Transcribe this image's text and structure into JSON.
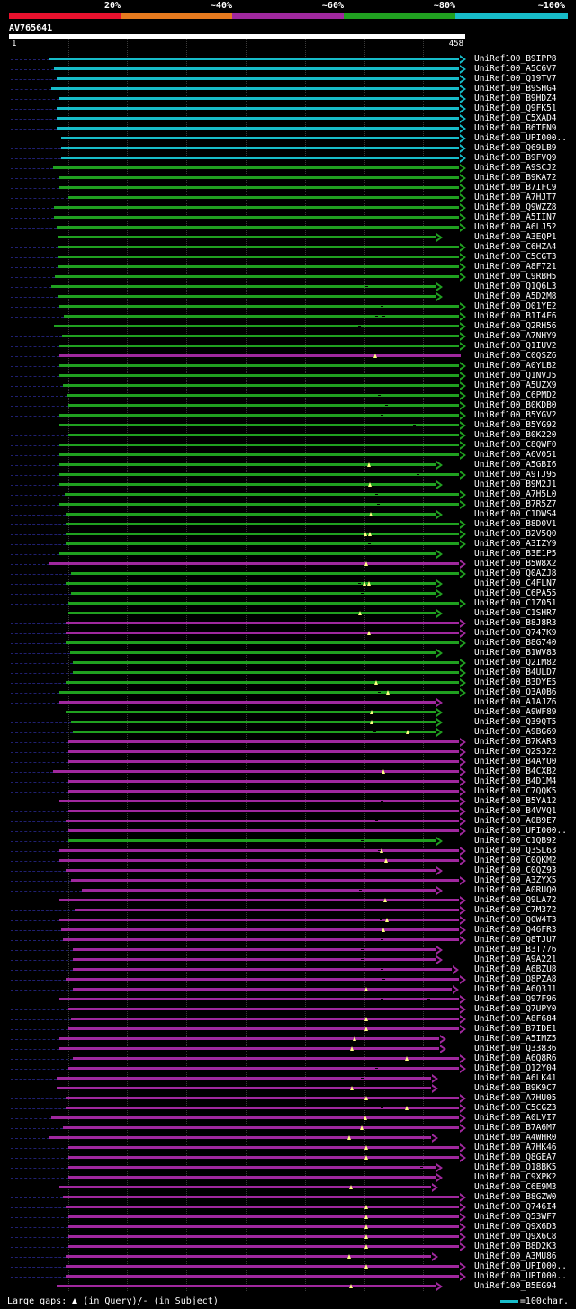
{
  "legend": [
    {
      "label": "20%",
      "color": "#e8112d"
    },
    {
      "label": "~40%",
      "color": "#e67a1e"
    },
    {
      "label": "~60%",
      "color": "#a0289e"
    },
    {
      "label": "~80%",
      "color": "#20a020"
    },
    {
      "label": "~100%",
      "color": "#17bcc9"
    }
  ],
  "query": {
    "id": "AV765641",
    "start": "1",
    "end": "458",
    "length": 458
  },
  "scale_ticks": [
    60,
    120,
    180,
    240,
    300,
    360,
    420
  ],
  "colors": {
    "c": "#17bcc9",
    "g": "#20a020",
    "p": "#a0289e",
    "marker": "#ffff80",
    "unaligned": "#202070"
  },
  "footer": {
    "large_gaps": "Large gaps:",
    "in_query": "(in Query)/",
    "dash": "-",
    "in_subject": "(in Subject)",
    "scale_label": "=100char."
  },
  "hits": [
    {
      "label": "UniRef100_B9IPP8",
      "c": "c",
      "s": 41,
      "e": 458,
      "a": 1,
      "m": [],
      "g": []
    },
    {
      "label": "UniRef100_A5C6V7",
      "c": "c",
      "s": 46,
      "e": 458,
      "a": 1,
      "m": [],
      "g": []
    },
    {
      "label": "UniRef100_Q19TV7",
      "c": "c",
      "s": 48,
      "e": 458,
      "a": 1,
      "m": [],
      "g": []
    },
    {
      "label": "UniRef100_B9SHG4",
      "c": "c",
      "s": 43,
      "e": 458,
      "a": 1,
      "m": [],
      "g": []
    },
    {
      "label": "UniRef100_B9HDZ4",
      "c": "c",
      "s": 51,
      "e": 458,
      "a": 1,
      "m": [],
      "g": []
    },
    {
      "label": "UniRef100_Q9FK51",
      "c": "c",
      "s": 48,
      "e": 458,
      "a": 1,
      "m": [],
      "g": []
    },
    {
      "label": "UniRef100_C5XAD4",
      "c": "c",
      "s": 48,
      "e": 458,
      "a": 1,
      "m": [],
      "g": []
    },
    {
      "label": "UniRef100_B6TFN9",
      "c": "c",
      "s": 48,
      "e": 458,
      "a": 1,
      "m": [],
      "g": []
    },
    {
      "label": "UniRef100_UPI000..",
      "c": "c",
      "s": 53,
      "e": 458,
      "a": 1,
      "m": [],
      "g": []
    },
    {
      "label": "UniRef100_Q69LB9",
      "c": "c",
      "s": 53,
      "e": 458,
      "a": 1,
      "m": [],
      "g": []
    },
    {
      "label": "UniRef100_B9FVQ9",
      "c": "c",
      "s": 53,
      "e": 458,
      "a": 1,
      "m": [],
      "g": []
    },
    {
      "label": "UniRef100_A9SCJ2",
      "c": "g",
      "s": 45,
      "e": 458,
      "a": 1,
      "m": [],
      "g": []
    },
    {
      "label": "UniRef100_B9KA72",
      "c": "g",
      "s": 51,
      "e": 458,
      "a": 1,
      "m": [],
      "g": []
    },
    {
      "label": "UniRef100_B7IFC9",
      "c": "g",
      "s": 51,
      "e": 458,
      "a": 1,
      "m": [],
      "g": []
    },
    {
      "label": "UniRef100_A7HJT7",
      "c": "g",
      "s": 60,
      "e": 458,
      "a": 1,
      "m": [],
      "g": []
    },
    {
      "label": "UniRef100_Q9WZZ8",
      "c": "g",
      "s": 46,
      "e": 458,
      "a": 1,
      "m": [],
      "g": []
    },
    {
      "label": "UniRef100_A5IIN7",
      "c": "g",
      "s": 46,
      "e": 458,
      "a": 1,
      "m": [],
      "g": []
    },
    {
      "label": "UniRef100_A6LJ52",
      "c": "g",
      "s": 48,
      "e": 458,
      "a": 1,
      "m": [],
      "g": []
    },
    {
      "label": "UniRef100_A3EQP1",
      "c": "g",
      "s": 49,
      "e": 434,
      "a": 1,
      "m": [],
      "g": []
    },
    {
      "label": "UniRef100_C6HZA4",
      "c": "g",
      "s": 50,
      "e": 458,
      "a": 1,
      "m": [],
      "g": [
        376
      ]
    },
    {
      "label": "UniRef100_C5CGT3",
      "c": "g",
      "s": 49,
      "e": 458,
      "a": 1,
      "m": [],
      "g": []
    },
    {
      "label": "UniRef100_A8F721",
      "c": "g",
      "s": 50,
      "e": 458,
      "a": 1,
      "m": [],
      "g": []
    },
    {
      "label": "UniRef100_C9RBH5",
      "c": "g",
      "s": 47,
      "e": 458,
      "a": 1,
      "m": [],
      "g": []
    },
    {
      "label": "UniRef100_Q1Q6L3",
      "c": "g",
      "s": 43,
      "e": 434,
      "a": 1,
      "m": [],
      "g": [
        362
      ]
    },
    {
      "label": "UniRef100_A5D2M8",
      "c": "g",
      "s": 49,
      "e": 434,
      "a": 1,
      "m": [],
      "g": []
    },
    {
      "label": "UniRef100_Q01YE2",
      "c": "g",
      "s": 51,
      "e": 458,
      "a": 1,
      "m": [],
      "g": [
        378
      ]
    },
    {
      "label": "UniRef100_B1I4F6",
      "c": "g",
      "s": 56,
      "e": 458,
      "a": 1,
      "m": [],
      "g": [
        372,
        380
      ]
    },
    {
      "label": "UniRef100_Q2RH56",
      "c": "g",
      "s": 46,
      "e": 458,
      "a": 1,
      "m": [],
      "g": [
        355
      ]
    },
    {
      "label": "UniRef100_A7NHY9",
      "c": "g",
      "s": 54,
      "e": 458,
      "a": 1,
      "m": [],
      "g": []
    },
    {
      "label": "UniRef100_Q1IUV2",
      "c": "g",
      "s": 51,
      "e": 458,
      "a": 1,
      "m": [],
      "g": []
    },
    {
      "label": "UniRef100_C0QSZ6",
      "c": "p",
      "s": 51,
      "e": 458,
      "a": 0,
      "m": [
        371
      ],
      "g": []
    },
    {
      "label": "UniRef100_A0YLB2",
      "c": "g",
      "s": 51,
      "e": 458,
      "a": 1,
      "m": [],
      "g": []
    },
    {
      "label": "UniRef100_Q1NVJ5",
      "c": "g",
      "s": 51,
      "e": 458,
      "a": 1,
      "m": [],
      "g": []
    },
    {
      "label": "UniRef100_A5UZX9",
      "c": "g",
      "s": 55,
      "e": 458,
      "a": 1,
      "m": [],
      "g": []
    },
    {
      "label": "UniRef100_C6PMD2",
      "c": "g",
      "s": 59,
      "e": 458,
      "a": 1,
      "m": [],
      "g": [
        375
      ]
    },
    {
      "label": "UniRef100_B0KDB0",
      "c": "g",
      "s": 60,
      "e": 458,
      "a": 1,
      "m": [],
      "g": [
        382
      ]
    },
    {
      "label": "UniRef100_B5YGV2",
      "c": "g",
      "s": 51,
      "e": 458,
      "a": 1,
      "m": [],
      "g": [
        378
      ]
    },
    {
      "label": "UniRef100_B5YG92",
      "c": "g",
      "s": 51,
      "e": 458,
      "a": 1,
      "m": [],
      "g": [
        411
      ]
    },
    {
      "label": "UniRef100_B0K220",
      "c": "g",
      "s": 60,
      "e": 458,
      "a": 1,
      "m": [],
      "g": [
        380
      ]
    },
    {
      "label": "UniRef100_C8QWF0",
      "c": "g",
      "s": 51,
      "e": 458,
      "a": 1,
      "m": [],
      "g": []
    },
    {
      "label": "UniRef100_A6V051",
      "c": "g",
      "s": 51,
      "e": 458,
      "a": 1,
      "m": [],
      "g": []
    },
    {
      "label": "UniRef100_A5GBI6",
      "c": "g",
      "s": 51,
      "e": 434,
      "a": 1,
      "m": [
        365
      ],
      "g": []
    },
    {
      "label": "UniRef100_A9TJ95",
      "c": "g",
      "s": 51,
      "e": 458,
      "a": 1,
      "m": [],
      "g": [
        414
      ]
    },
    {
      "label": "UniRef100_B9M2J1",
      "c": "g",
      "s": 51,
      "e": 434,
      "a": 1,
      "m": [
        366
      ],
      "g": []
    },
    {
      "label": "UniRef100_A7H5L0",
      "c": "g",
      "s": 57,
      "e": 458,
      "a": 1,
      "m": [],
      "g": [
        372
      ]
    },
    {
      "label": "UniRef100_B7R5Z7",
      "c": "g",
      "s": 51,
      "e": 458,
      "a": 1,
      "m": [],
      "g": [
        374
      ]
    },
    {
      "label": "UniRef100_C1DWS4",
      "c": "g",
      "s": 58,
      "e": 434,
      "a": 1,
      "m": [
        367
      ],
      "g": []
    },
    {
      "label": "UniRef100_B8D0V1",
      "c": "g",
      "s": 58,
      "e": 458,
      "a": 1,
      "m": [],
      "g": [
        366
      ]
    },
    {
      "label": "UniRef100_B2V5Q0",
      "c": "g",
      "s": 58,
      "e": 458,
      "a": 1,
      "m": [
        361,
        366
      ],
      "g": []
    },
    {
      "label": "UniRef100_A3IZY9",
      "c": "g",
      "s": 58,
      "e": 458,
      "a": 1,
      "m": [],
      "g": [
        365
      ]
    },
    {
      "label": "UniRef100_B3E1P5",
      "c": "g",
      "s": 51,
      "e": 434,
      "a": 1,
      "m": [],
      "g": []
    },
    {
      "label": "UniRef100_B5W8X2",
      "c": "p",
      "s": 41,
      "e": 458,
      "a": 1,
      "m": [
        362
      ],
      "g": []
    },
    {
      "label": "UniRef100_Q0AZJ8",
      "c": "g",
      "s": 63,
      "e": 458,
      "a": 1,
      "m": [],
      "g": []
    },
    {
      "label": "UniRef100_C4FLN7",
      "c": "g",
      "s": 58,
      "e": 434,
      "a": 1,
      "m": [
        360,
        365
      ],
      "g": [
        355
      ]
    },
    {
      "label": "UniRef100_C6PA55",
      "c": "g",
      "s": 63,
      "e": 434,
      "a": 1,
      "m": [],
      "g": [
        358
      ]
    },
    {
      "label": "UniRef100_C1Z051",
      "c": "g",
      "s": 60,
      "e": 458,
      "a": 1,
      "m": [],
      "g": []
    },
    {
      "label": "UniRef100_C1SHR7",
      "c": "g",
      "s": 60,
      "e": 434,
      "a": 1,
      "m": [
        356
      ],
      "g": []
    },
    {
      "label": "UniRef100_B8J8R3",
      "c": "p",
      "s": 58,
      "e": 458,
      "a": 1,
      "m": [],
      "g": []
    },
    {
      "label": "UniRef100_Q747K9",
      "c": "p",
      "s": 58,
      "e": 458,
      "a": 1,
      "m": [
        365
      ],
      "g": []
    },
    {
      "label": "UniRef100_B8G740",
      "c": "g",
      "s": 58,
      "e": 458,
      "a": 1,
      "m": [],
      "g": []
    },
    {
      "label": "UniRef100_B1WV83",
      "c": "g",
      "s": 62,
      "e": 434,
      "a": 1,
      "m": [],
      "g": []
    },
    {
      "label": "UniRef100_Q2IM82",
      "c": "g",
      "s": 65,
      "e": 458,
      "a": 1,
      "m": [],
      "g": []
    },
    {
      "label": "UniRef100_B4ULD7",
      "c": "g",
      "s": 65,
      "e": 458,
      "a": 1,
      "m": [],
      "g": []
    },
    {
      "label": "UniRef100_B3DYE5",
      "c": "g",
      "s": 58,
      "e": 458,
      "a": 1,
      "m": [
        372
      ],
      "g": []
    },
    {
      "label": "UniRef100_Q3A0B6",
      "c": "g",
      "s": 51,
      "e": 458,
      "a": 1,
      "m": [
        384
      ],
      "g": [
        375
      ]
    },
    {
      "label": "UniRef100_A1AJZ6",
      "c": "p",
      "s": 51,
      "e": 434,
      "a": 1,
      "m": [],
      "g": []
    },
    {
      "label": "UniRef100_A9WF89",
      "c": "g",
      "s": 58,
      "e": 434,
      "a": 1,
      "m": [
        368
      ],
      "g": []
    },
    {
      "label": "UniRef100_Q39QT5",
      "c": "g",
      "s": 63,
      "e": 434,
      "a": 1,
      "m": [
        368
      ],
      "g": []
    },
    {
      "label": "UniRef100_A9BG69",
      "c": "g",
      "s": 65,
      "e": 434,
      "a": 1,
      "m": [
        404
      ],
      "g": [
        370
      ]
    },
    {
      "label": "UniRef100_B7KAR3",
      "c": "p",
      "s": 60,
      "e": 458,
      "a": 1,
      "m": [],
      "g": []
    },
    {
      "label": "UniRef100_Q2S322",
      "c": "p",
      "s": 60,
      "e": 458,
      "a": 1,
      "m": [],
      "g": []
    },
    {
      "label": "UniRef100_B4AYU0",
      "c": "p",
      "s": 60,
      "e": 458,
      "a": 1,
      "m": [],
      "g": []
    },
    {
      "label": "UniRef100_B4CXB2",
      "c": "p",
      "s": 45,
      "e": 458,
      "a": 1,
      "m": [
        380
      ],
      "g": []
    },
    {
      "label": "UniRef100_B4D1M4",
      "c": "p",
      "s": 60,
      "e": 458,
      "a": 1,
      "m": [],
      "g": []
    },
    {
      "label": "UniRef100_C7QQK5",
      "c": "p",
      "s": 60,
      "e": 458,
      "a": 1,
      "m": [],
      "g": []
    },
    {
      "label": "UniRef100_B5YA12",
      "c": "p",
      "s": 51,
      "e": 458,
      "a": 1,
      "m": [],
      "g": [
        378
      ]
    },
    {
      "label": "UniRef100_B4VVQ1",
      "c": "p",
      "s": 60,
      "e": 458,
      "a": 1,
      "m": [],
      "g": []
    },
    {
      "label": "UniRef100_A0B9E7",
      "c": "p",
      "s": 58,
      "e": 458,
      "a": 1,
      "m": [],
      "g": [
        372
      ]
    },
    {
      "label": "UniRef100_UPI000..",
      "c": "p",
      "s": 60,
      "e": 458,
      "a": 1,
      "m": [],
      "g": []
    },
    {
      "label": "UniRef100_C1QB92",
      "c": "g",
      "s": 60,
      "e": 434,
      "a": 1,
      "m": [],
      "g": [
        358
      ]
    },
    {
      "label": "UniRef100_Q3SL63",
      "c": "p",
      "s": 51,
      "e": 458,
      "a": 1,
      "m": [
        378
      ],
      "g": [
        375
      ]
    },
    {
      "label": "UniRef100_C0QKM2",
      "c": "p",
      "s": 51,
      "e": 458,
      "a": 1,
      "m": [
        382
      ],
      "g": []
    },
    {
      "label": "UniRef100_C0QZ93",
      "c": "p",
      "s": 58,
      "e": 434,
      "a": 1,
      "m": [],
      "g": []
    },
    {
      "label": "UniRef100_A3ZYX5",
      "c": "p",
      "s": 63,
      "e": 458,
      "a": 1,
      "m": [],
      "g": []
    },
    {
      "label": "UniRef100_A0RUQ0",
      "c": "p",
      "s": 74,
      "e": 434,
      "a": 1,
      "m": [],
      "g": [
        356
      ]
    },
    {
      "label": "UniRef100_Q9LA72",
      "c": "p",
      "s": 51,
      "e": 458,
      "a": 1,
      "m": [
        381
      ],
      "g": []
    },
    {
      "label": "UniRef100_C7M372",
      "c": "p",
      "s": 67,
      "e": 458,
      "a": 1,
      "m": [],
      "g": [
        372
      ]
    },
    {
      "label": "UniRef100_Q0W4T3",
      "c": "p",
      "s": 51,
      "e": 458,
      "a": 1,
      "m": [
        383
      ],
      "g": [
        377
      ]
    },
    {
      "label": "UniRef100_Q46FR3",
      "c": "p",
      "s": 53,
      "e": 458,
      "a": 1,
      "m": [
        380
      ],
      "g": []
    },
    {
      "label": "UniRef100_Q8TJU7",
      "c": "p",
      "s": 55,
      "e": 458,
      "a": 1,
      "m": [],
      "g": [
        378
      ]
    },
    {
      "label": "UniRef100_B3T776",
      "c": "p",
      "s": 65,
      "e": 434,
      "a": 1,
      "m": [],
      "g": [
        358
      ]
    },
    {
      "label": "UniRef100_A9A221",
      "c": "p",
      "s": 65,
      "e": 434,
      "a": 1,
      "m": [],
      "g": [
        358
      ]
    },
    {
      "label": "UniRef100_A6BZU8",
      "c": "p",
      "s": 65,
      "e": 451,
      "a": 1,
      "m": [],
      "g": [
        378
      ]
    },
    {
      "label": "UniRef100_Q8PZA8",
      "c": "p",
      "s": 58,
      "e": 458,
      "a": 1,
      "m": [],
      "g": [
        380
      ]
    },
    {
      "label": "UniRef100_A6Q3J1",
      "c": "p",
      "s": 65,
      "e": 451,
      "a": 1,
      "m": [
        362
      ],
      "g": []
    },
    {
      "label": "UniRef100_Q97F96",
      "c": "p",
      "s": 51,
      "e": 458,
      "a": 1,
      "m": [],
      "g": [
        378,
        425
      ]
    },
    {
      "label": "UniRef100_Q7UPY0",
      "c": "p",
      "s": 60,
      "e": 458,
      "a": 1,
      "m": [],
      "g": []
    },
    {
      "label": "UniRef100_A8F684",
      "c": "p",
      "s": 63,
      "e": 458,
      "a": 1,
      "m": [
        362
      ],
      "g": []
    },
    {
      "label": "UniRef100_B7IDE1",
      "c": "p",
      "s": 60,
      "e": 458,
      "a": 1,
      "m": [
        362
      ],
      "g": []
    },
    {
      "label": "UniRef100_A5IMZ5",
      "c": "p",
      "s": 51,
      "e": 438,
      "a": 1,
      "m": [
        350
      ],
      "g": []
    },
    {
      "label": "UniRef100_Q33836",
      "c": "p",
      "s": 51,
      "e": 438,
      "a": 1,
      "m": [
        348
      ],
      "g": []
    },
    {
      "label": "UniRef100_A6Q8R6",
      "c": "p",
      "s": 65,
      "e": 458,
      "a": 1,
      "m": [
        403
      ],
      "g": []
    },
    {
      "label": "UniRef100_Q12Y04",
      "c": "p",
      "s": 60,
      "e": 458,
      "a": 1,
      "m": [],
      "g": [
        372
      ]
    },
    {
      "label": "UniRef100_A6LK41",
      "c": "p",
      "s": 48,
      "e": 430,
      "a": 1,
      "m": [],
      "g": [
        358
      ]
    },
    {
      "label": "UniRef100_B9K9C7",
      "c": "p",
      "s": 48,
      "e": 430,
      "a": 1,
      "m": [
        348
      ],
      "g": []
    },
    {
      "label": "UniRef100_A7HU05",
      "c": "p",
      "s": 58,
      "e": 458,
      "a": 1,
      "m": [
        362
      ],
      "g": []
    },
    {
      "label": "UniRef100_C5CGZ3",
      "c": "p",
      "s": 58,
      "e": 458,
      "a": 1,
      "m": [
        403
      ],
      "g": [
        378
      ]
    },
    {
      "label": "UniRef100_A0LVI7",
      "c": "p",
      "s": 43,
      "e": 458,
      "a": 1,
      "m": [
        361
      ],
      "g": []
    },
    {
      "label": "UniRef100_B7A6M7",
      "c": "p",
      "s": 55,
      "e": 458,
      "a": 1,
      "m": [
        358
      ],
      "g": []
    },
    {
      "label": "UniRef100_A4WHR0",
      "c": "p",
      "s": 41,
      "e": 430,
      "a": 1,
      "m": [
        345
      ],
      "g": []
    },
    {
      "label": "UniRef100_A7HK46",
      "c": "p",
      "s": 60,
      "e": 458,
      "a": 1,
      "m": [
        362
      ],
      "g": []
    },
    {
      "label": "UniRef100_Q8GEA7",
      "c": "p",
      "s": 60,
      "e": 458,
      "a": 1,
      "m": [
        362
      ],
      "g": []
    },
    {
      "label": "UniRef100_Q18BK5",
      "c": "p",
      "s": 60,
      "e": 434,
      "a": 1,
      "m": [],
      "g": [
        418
      ]
    },
    {
      "label": "UniRef100_C9XPK2",
      "c": "p",
      "s": 60,
      "e": 434,
      "a": 1,
      "m": [],
      "g": []
    },
    {
      "label": "UniRef100_C6E9M3",
      "c": "p",
      "s": 51,
      "e": 430,
      "a": 1,
      "m": [
        347
      ],
      "g": []
    },
    {
      "label": "UniRef100_B8GZW0",
      "c": "p",
      "s": 55,
      "e": 458,
      "a": 1,
      "m": [],
      "g": [
        378
      ]
    },
    {
      "label": "UniRef100_Q746I4",
      "c": "p",
      "s": 58,
      "e": 458,
      "a": 1,
      "m": [
        362
      ],
      "g": []
    },
    {
      "label": "UniRef100_Q53WF7",
      "c": "p",
      "s": 60,
      "e": 458,
      "a": 1,
      "m": [
        362
      ],
      "g": []
    },
    {
      "label": "UniRef100_Q9X6D3",
      "c": "p",
      "s": 60,
      "e": 458,
      "a": 1,
      "m": [
        362
      ],
      "g": []
    },
    {
      "label": "UniRef100_Q9X6C8",
      "c": "p",
      "s": 60,
      "e": 458,
      "a": 1,
      "m": [
        362
      ],
      "g": []
    },
    {
      "label": "UniRef100_B8D2K3",
      "c": "p",
      "s": 60,
      "e": 458,
      "a": 1,
      "m": [
        362
      ],
      "g": []
    },
    {
      "label": "UniRef100_A3MU86",
      "c": "p",
      "s": 58,
      "e": 430,
      "a": 1,
      "m": [
        345
      ],
      "g": []
    },
    {
      "label": "UniRef100_UPI000..",
      "c": "p",
      "s": 58,
      "e": 458,
      "a": 1,
      "m": [
        362
      ],
      "g": []
    },
    {
      "label": "UniRef100_UPI000..",
      "c": "p",
      "s": 58,
      "e": 458,
      "a": 1,
      "m": [],
      "g": []
    },
    {
      "label": "UniRef100_B5EG94",
      "c": "p",
      "s": 48,
      "e": 434,
      "a": 1,
      "m": [
        347
      ],
      "g": []
    }
  ]
}
